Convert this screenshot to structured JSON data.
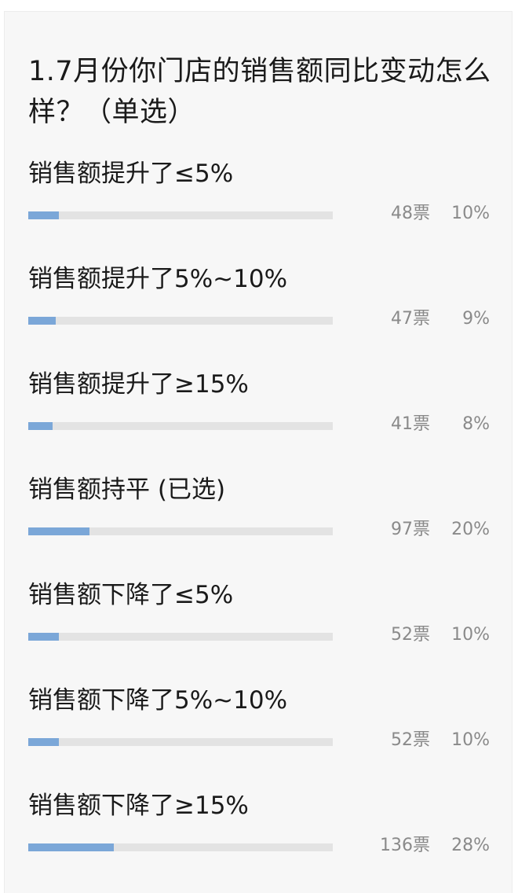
{
  "question": {
    "title": "1.7月份你门店的销售额同比变动怎么样？（单选）"
  },
  "options": [
    {
      "label": "销售额提升了≤5%",
      "votes": "48票",
      "percent": "10%",
      "fraction": 0.1
    },
    {
      "label": "销售额提升了5%~10%",
      "votes": "47票",
      "percent": "9%",
      "fraction": 0.09
    },
    {
      "label": "销售额提升了≥15%",
      "votes": "41票",
      "percent": "8%",
      "fraction": 0.08
    },
    {
      "label": "销售额持平 (已选)",
      "votes": "97票",
      "percent": "20%",
      "fraction": 0.2
    },
    {
      "label": "销售额下降了≤5%",
      "votes": "52票",
      "percent": "10%",
      "fraction": 0.1
    },
    {
      "label": "销售额下降了5%~10%",
      "votes": "52票",
      "percent": "10%",
      "fraction": 0.1
    },
    {
      "label": "销售额下降了≥15%",
      "votes": "136票",
      "percent": "28%",
      "fraction": 0.28
    }
  ],
  "colors": {
    "bar_fill": "#7ba7d8",
    "bar_track": "#e3e3e3",
    "card_background": "#f7f7f7"
  }
}
